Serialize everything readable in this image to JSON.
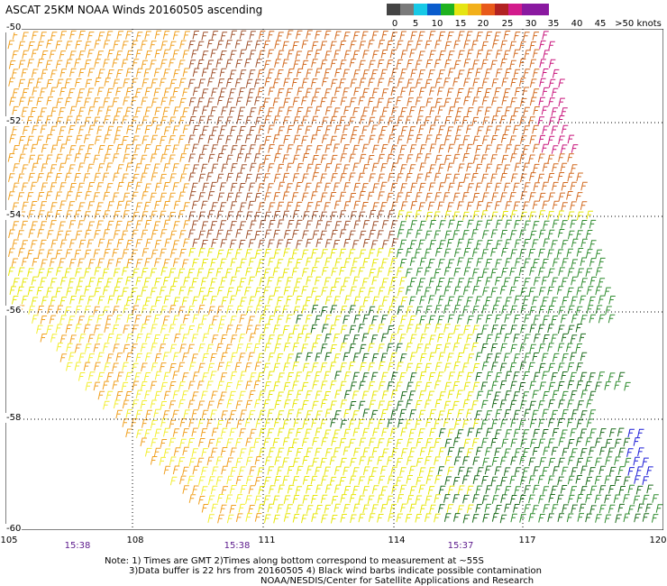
{
  "title": "ASCAT 25KM NOAA Winds 20160505 ascending",
  "legend": {
    "labels": [
      "0",
      "5",
      "10",
      "15",
      "20",
      "25",
      "30",
      "35",
      "40",
      "45",
      ">50 knots"
    ],
    "colors": [
      "#444444",
      "#7a7a7a",
      "#17c9e6",
      "#0a5ccc",
      "#1fb21f",
      "#e5e512",
      "#f2b01a",
      "#e85a1a",
      "#b22222",
      "#d21b8c",
      "#8a19a0"
    ]
  },
  "map": {
    "lat_labels": [
      "-50",
      "-52",
      "-54",
      "-56",
      "-58",
      "-60"
    ],
    "lon_labels": [
      "105",
      "108",
      "111",
      "114",
      "117",
      "120"
    ],
    "time_labels": [
      "15:38",
      "15:38",
      "15:37"
    ],
    "barb_colors": {
      "orange": "#f0a020",
      "dark_orange": "#d2691e",
      "brown": "#a0522d",
      "yellow": "#e6e60a",
      "light_yellow": "#f2ee30",
      "green": "#2e8b2e",
      "dark_green": "#1a6a1a",
      "blue": "#1a1ad6",
      "magenta": "#c8127a",
      "contamination": "#000000"
    }
  },
  "notes": {
    "line1": "Note: 1) Times are GMT 2)Times along bottom correspond to measurement at ~55S",
    "line2": "3)Data buffer is 22 hrs from 20160505 4) Black wind barbs indicate possible contamination",
    "line3": "NOAA/NESDIS/Center for Satellite Applications and Research"
  }
}
